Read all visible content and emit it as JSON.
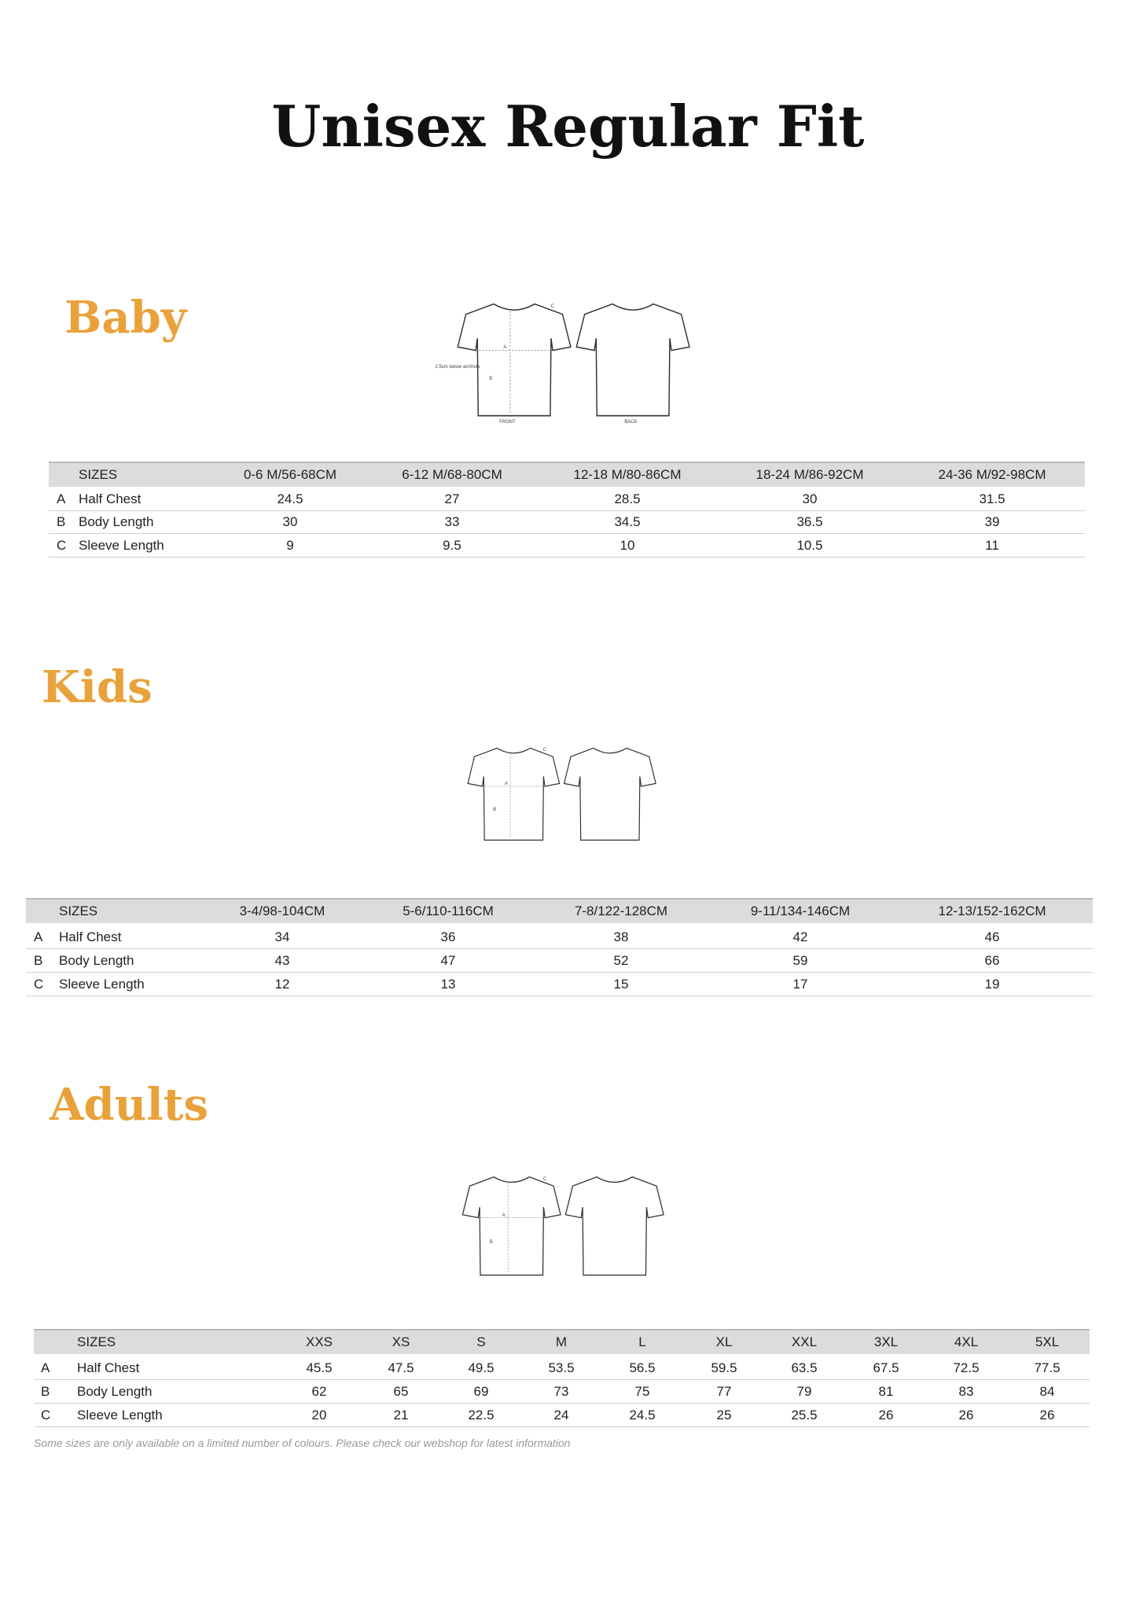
{
  "title": "Unisex Regular Fit",
  "sections": [
    {
      "heading": "Baby",
      "diagram": {
        "labels": [
          "A",
          "B",
          "C",
          "2.5cm below armhole",
          "FRONT",
          "BACK"
        ]
      },
      "table": {
        "header": [
          "SIZES",
          "0-6 M/56-68CM",
          "6-12 M/68-80CM",
          "12-18 M/80-86CM",
          "18-24 M/86-92CM",
          "24-36 M/92-98CM"
        ],
        "rows": [
          {
            "letter": "A",
            "label": "Half Chest",
            "values": [
              24.5,
              27,
              28.5,
              30,
              31.5
            ]
          },
          {
            "letter": "B",
            "label": "Body Length",
            "values": [
              30,
              33,
              34.5,
              36.5,
              39
            ]
          },
          {
            "letter": "C",
            "label": "Sleeve Length",
            "values": [
              9,
              9.5,
              10,
              10.5,
              11
            ]
          }
        ]
      }
    },
    {
      "heading": "Kids",
      "diagram": {
        "labels": [
          "A",
          "B",
          "C"
        ]
      },
      "table": {
        "header": [
          "SIZES",
          "3-4/98-104CM",
          "5-6/110-116CM",
          "7-8/122-128CM",
          "9-11/134-146CM",
          "12-13/152-162CM"
        ],
        "rows": [
          {
            "letter": "A",
            "label": "Half Chest",
            "values": [
              34,
              36,
              38,
              42,
              46
            ]
          },
          {
            "letter": "B",
            "label": "Body Length",
            "values": [
              43,
              47,
              52,
              59,
              66
            ]
          },
          {
            "letter": "C",
            "label": "Sleeve Length",
            "values": [
              12,
              13,
              15,
              17,
              19
            ]
          }
        ]
      }
    },
    {
      "heading": "Adults",
      "diagram": {
        "labels": [
          "A",
          "B",
          "C"
        ]
      },
      "table": {
        "header": [
          "SIZES",
          "XXS",
          "XS",
          "S",
          "M",
          "L",
          "XL",
          "XXL",
          "3XL",
          "4XL",
          "5XL"
        ],
        "rows": [
          {
            "letter": "A",
            "label": "Half Chest",
            "values": [
              45.5,
              47.5,
              49.5,
              53.5,
              56.5,
              59.5,
              63.5,
              67.5,
              72.5,
              77.5
            ]
          },
          {
            "letter": "B",
            "label": "Body Length",
            "values": [
              62,
              65,
              69,
              73,
              75,
              77,
              79,
              81,
              83,
              84
            ]
          },
          {
            "letter": "C",
            "label": "Sleeve Length",
            "values": [
              20,
              21,
              22.5,
              24,
              24.5,
              25,
              25.5,
              26,
              26,
              26
            ]
          }
        ]
      },
      "note": "Some sizes are only available on a limited number of colours. Please check our webshop for latest information"
    }
  ]
}
